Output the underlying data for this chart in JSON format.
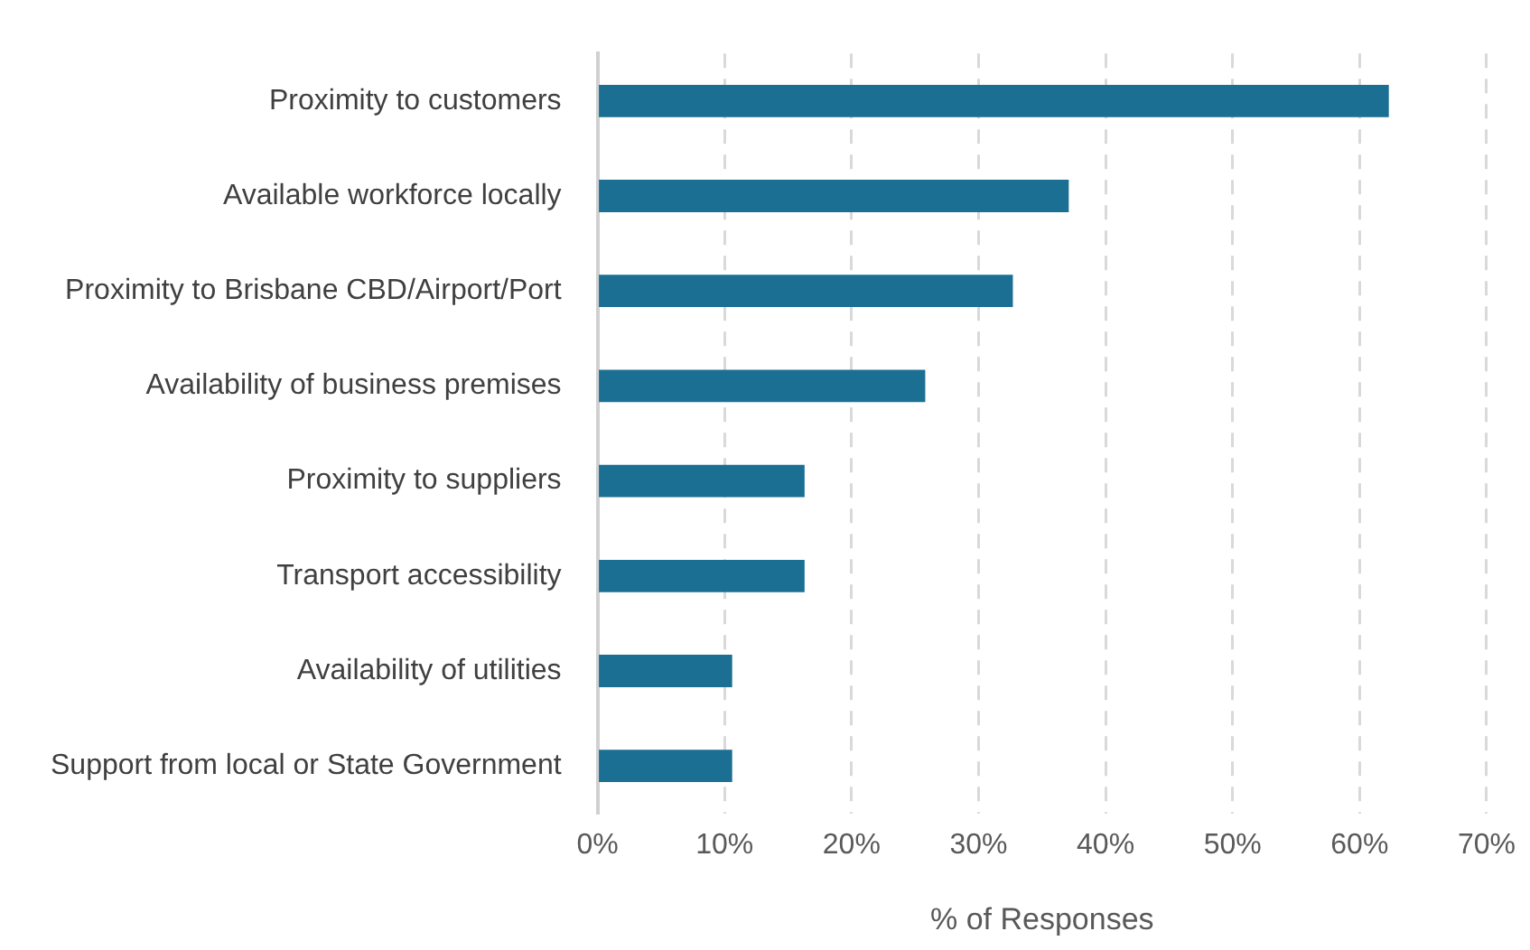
{
  "chart_data": {
    "type": "bar",
    "orientation": "horizontal",
    "xlabel": "% of Responses",
    "categories": [
      "Proximity to customers",
      "Available workforce locally",
      "Proximity to Brisbane CBD/Airport/Port",
      "Availability of business premises",
      "Proximity to suppliers",
      "Transport accessibility",
      "Availability of utilities",
      "Support from local or State Government"
    ],
    "values": [
      62.3,
      37.1,
      32.7,
      25.8,
      16.3,
      16.3,
      10.6,
      10.6
    ],
    "color": "#1a6f93",
    "xlim": [
      0,
      70
    ],
    "xticks": [
      {
        "value": 0,
        "label": "0%"
      },
      {
        "value": 10,
        "label": "10%"
      },
      {
        "value": 20,
        "label": "20%"
      },
      {
        "value": 30,
        "label": "30%"
      },
      {
        "value": 40,
        "label": "40%"
      },
      {
        "value": 50,
        "label": "50%"
      },
      {
        "value": 60,
        "label": "60%"
      },
      {
        "value": 70,
        "label": "70%"
      }
    ],
    "grid": "x",
    "legend": false
  }
}
